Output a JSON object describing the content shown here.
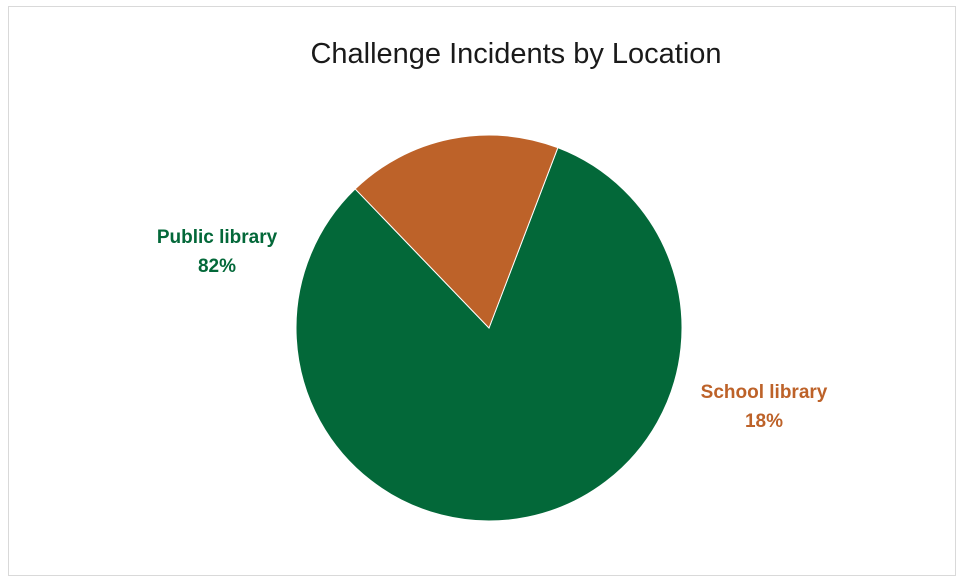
{
  "chart_data": {
    "type": "pie",
    "title": "Challenge Incidents by Location",
    "slices": [
      {
        "label": "Public library",
        "value": 82,
        "display": "82%",
        "color": "#036839"
      },
      {
        "label": "School library",
        "value": 18,
        "display": "18%",
        "color": "#bd6229"
      }
    ],
    "legend": "none",
    "data_labels": "outside"
  }
}
